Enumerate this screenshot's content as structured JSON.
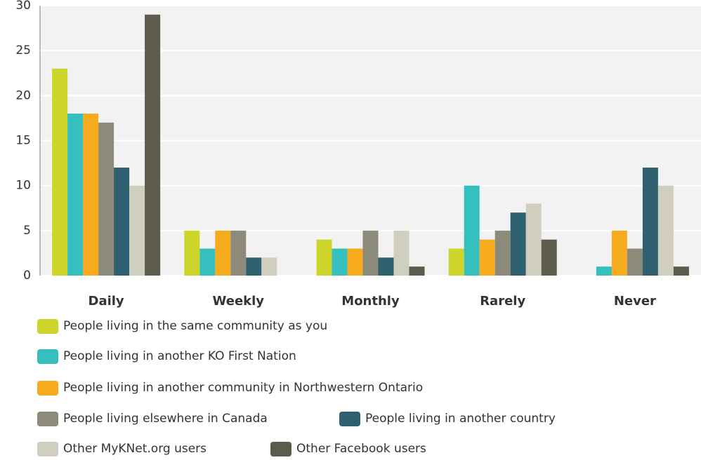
{
  "chart_data": {
    "type": "bar",
    "categories": [
      "Daily",
      "Weekly",
      "Monthly",
      "Rarely",
      "Never"
    ],
    "series": [
      {
        "name": "People living in the same community as you",
        "color": "#cdd52a",
        "values": [
          23,
          5,
          4,
          3,
          0
        ]
      },
      {
        "name": "People living in another KO First Nation",
        "color": "#35bfbf",
        "values": [
          18,
          3,
          3,
          10,
          1
        ]
      },
      {
        "name": "People living in another community in Northwestern Ontario",
        "color": "#f7ab1e",
        "values": [
          18,
          5,
          3,
          4,
          5
        ]
      },
      {
        "name": "People living elsewhere in Canada",
        "color": "#8c8b7a",
        "values": [
          17,
          5,
          5,
          5,
          3
        ]
      },
      {
        "name": "People living in another country",
        "color": "#2e6070",
        "values": [
          12,
          2,
          2,
          7,
          12
        ]
      },
      {
        "name": "Other MyKNet.org users",
        "color": "#d0cebf",
        "values": [
          10,
          2,
          5,
          8,
          10
        ]
      },
      {
        "name": "Other Facebook users",
        "color": "#5c5b4c",
        "values": [
          29,
          0,
          1,
          4,
          1
        ]
      }
    ],
    "ylim": [
      0,
      30
    ],
    "yticks": [
      0,
      5,
      10,
      15,
      20,
      25,
      30
    ],
    "grid": true
  }
}
